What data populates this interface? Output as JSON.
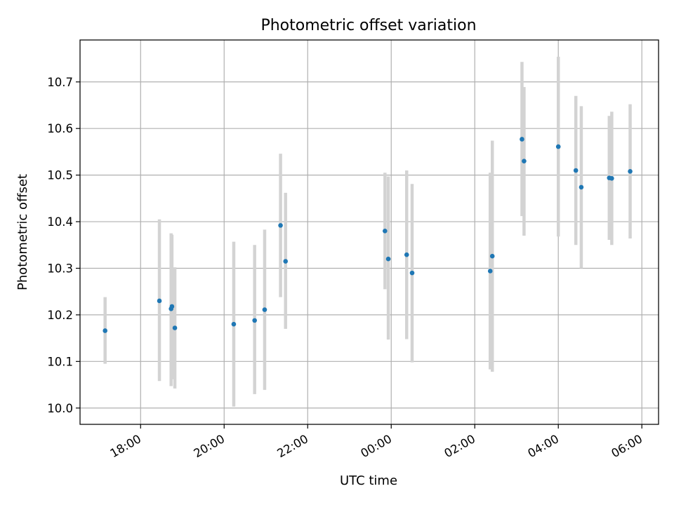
{
  "chart_data": {
    "type": "scatter",
    "title": "Photometric offset variation",
    "xlabel": "UTC time",
    "ylabel": "Photometric offset",
    "x_unit": "UTC time (hours; values of 24 and above fall on the next day)",
    "xlim": [
      16.55,
      30.4
    ],
    "ylim": [
      9.965,
      10.79
    ],
    "x_ticks": [
      {
        "value": 18,
        "label": "18:00"
      },
      {
        "value": 20,
        "label": "20:00"
      },
      {
        "value": 22,
        "label": "22:00"
      },
      {
        "value": 24,
        "label": "00:00"
      },
      {
        "value": 26,
        "label": "02:00"
      },
      {
        "value": 28,
        "label": "04:00"
      },
      {
        "value": 30,
        "label": "06:00"
      }
    ],
    "y_ticks": [
      {
        "value": 10.0,
        "label": "10.0"
      },
      {
        "value": 10.1,
        "label": "10.1"
      },
      {
        "value": 10.2,
        "label": "10.2"
      },
      {
        "value": 10.3,
        "label": "10.3"
      },
      {
        "value": 10.4,
        "label": "10.4"
      },
      {
        "value": 10.5,
        "label": "10.5"
      },
      {
        "value": 10.6,
        "label": "10.6"
      },
      {
        "value": 10.7,
        "label": "10.7"
      }
    ],
    "grid": true,
    "point_color": "#1f77b4",
    "errorbar_color": "#d3d3d3",
    "points": [
      {
        "x": 17.15,
        "y": 10.166,
        "ylow": 10.095,
        "yhigh": 10.238
      },
      {
        "x": 18.45,
        "y": 10.23,
        "ylow": 10.058,
        "yhigh": 10.405
      },
      {
        "x": 18.73,
        "y": 10.213,
        "ylow": 10.047,
        "yhigh": 10.375
      },
      {
        "x": 18.75,
        "y": 10.218,
        "ylow": 10.062,
        "yhigh": 10.372
      },
      {
        "x": 18.82,
        "y": 10.172,
        "ylow": 10.042,
        "yhigh": 10.302
      },
      {
        "x": 20.23,
        "y": 10.18,
        "ylow": 10.003,
        "yhigh": 10.357
      },
      {
        "x": 20.73,
        "y": 10.188,
        "ylow": 10.03,
        "yhigh": 10.35
      },
      {
        "x": 20.97,
        "y": 10.211,
        "ylow": 10.039,
        "yhigh": 10.383
      },
      {
        "x": 21.35,
        "y": 10.392,
        "ylow": 10.238,
        "yhigh": 10.546
      },
      {
        "x": 21.47,
        "y": 10.315,
        "ylow": 10.17,
        "yhigh": 10.462
      },
      {
        "x": 23.85,
        "y": 10.38,
        "ylow": 10.255,
        "yhigh": 10.505
      },
      {
        "x": 23.93,
        "y": 10.32,
        "ylow": 10.147,
        "yhigh": 10.497
      },
      {
        "x": 24.37,
        "y": 10.329,
        "ylow": 10.148,
        "yhigh": 10.51
      },
      {
        "x": 24.5,
        "y": 10.29,
        "ylow": 10.098,
        "yhigh": 10.481
      },
      {
        "x": 26.37,
        "y": 10.294,
        "ylow": 10.083,
        "yhigh": 10.505
      },
      {
        "x": 26.42,
        "y": 10.326,
        "ylow": 10.078,
        "yhigh": 10.574
      },
      {
        "x": 27.13,
        "y": 10.577,
        "ylow": 10.412,
        "yhigh": 10.743
      },
      {
        "x": 27.18,
        "y": 10.53,
        "ylow": 10.37,
        "yhigh": 10.689
      },
      {
        "x": 28.0,
        "y": 10.561,
        "ylow": 10.368,
        "yhigh": 10.754
      },
      {
        "x": 28.42,
        "y": 10.51,
        "ylow": 10.35,
        "yhigh": 10.67
      },
      {
        "x": 28.55,
        "y": 10.474,
        "ylow": 10.3,
        "yhigh": 10.648
      },
      {
        "x": 29.22,
        "y": 10.494,
        "ylow": 10.361,
        "yhigh": 10.627
      },
      {
        "x": 29.28,
        "y": 10.493,
        "ylow": 10.35,
        "yhigh": 10.636
      },
      {
        "x": 29.72,
        "y": 10.508,
        "ylow": 10.364,
        "yhigh": 10.652
      }
    ]
  }
}
